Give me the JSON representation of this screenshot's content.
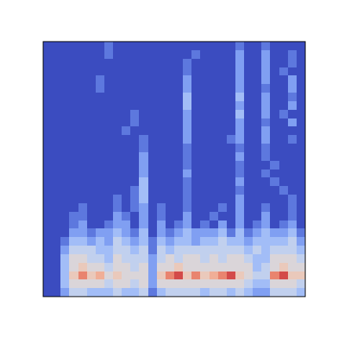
{
  "chart_data": {
    "type": "heatmap",
    "tick_labels": false,
    "zlim": [
      0,
      10
    ],
    "cells": [
      [
        0,
        0,
        0,
        0,
        0,
        0,
        0,
        1,
        0,
        0,
        0,
        0,
        0,
        0,
        0,
        0,
        0,
        0,
        0,
        0,
        0,
        0,
        1,
        0,
        0,
        1,
        0,
        0,
        0,
        0
      ],
      [
        0,
        0,
        0,
        0,
        0,
        0,
        0,
        1,
        0,
        0,
        0,
        0,
        0,
        0,
        0,
        0,
        0,
        1,
        0,
        0,
        0,
        0,
        2,
        0,
        0,
        2,
        0,
        0,
        1,
        0
      ],
      [
        0,
        0,
        0,
        0,
        0,
        0,
        0,
        0,
        0,
        0,
        0,
        0,
        0,
        0,
        0,
        0,
        1,
        0,
        0,
        0,
        0,
        0,
        2,
        0,
        0,
        2,
        0,
        0,
        1,
        0
      ],
      [
        0,
        0,
        0,
        0,
        0,
        0,
        0,
        0,
        0,
        0,
        0,
        0,
        0,
        0,
        0,
        0,
        1,
        0,
        0,
        0,
        0,
        0,
        2,
        0,
        0,
        2,
        0,
        1,
        0,
        0
      ],
      [
        0,
        0,
        0,
        0,
        0,
        0,
        1,
        0,
        0,
        0,
        0,
        0,
        0,
        0,
        0,
        0,
        2,
        0,
        0,
        0,
        0,
        0,
        2,
        0,
        0,
        2,
        0,
        0,
        2,
        0
      ],
      [
        0,
        0,
        0,
        0,
        0,
        0,
        1,
        0,
        0,
        0,
        0,
        0,
        0,
        0,
        0,
        0,
        2,
        0,
        0,
        0,
        0,
        0,
        2,
        0,
        0,
        1,
        0,
        0,
        2,
        0
      ],
      [
        0,
        0,
        0,
        0,
        0,
        0,
        0,
        0,
        0,
        0,
        0,
        0,
        0,
        0,
        0,
        0,
        3,
        0,
        0,
        0,
        0,
        0,
        3,
        0,
        0,
        2,
        0,
        0,
        1,
        0
      ],
      [
        0,
        0,
        0,
        0,
        0,
        0,
        0,
        0,
        0,
        0,
        0,
        0,
        0,
        0,
        0,
        0,
        3,
        0,
        0,
        0,
        0,
        0,
        2,
        0,
        0,
        2,
        0,
        0,
        2,
        0
      ],
      [
        0,
        0,
        0,
        0,
        0,
        0,
        0,
        0,
        0,
        0,
        1,
        0,
        0,
        0,
        0,
        0,
        2,
        0,
        0,
        0,
        0,
        0,
        3,
        0,
        0,
        2,
        0,
        1,
        0,
        0
      ],
      [
        0,
        0,
        0,
        0,
        0,
        0,
        0,
        0,
        0,
        0,
        1,
        0,
        0,
        0,
        0,
        0,
        2,
        0,
        0,
        0,
        0,
        0,
        2,
        0,
        0,
        1,
        0,
        0,
        2,
        0
      ],
      [
        0,
        0,
        0,
        0,
        0,
        0,
        0,
        0,
        0,
        1,
        0,
        0,
        0,
        0,
        0,
        0,
        2,
        0,
        0,
        0,
        0,
        0,
        2,
        0,
        0,
        2,
        0,
        0,
        0,
        0
      ],
      [
        0,
        0,
        0,
        0,
        0,
        0,
        0,
        0,
        0,
        0,
        0,
        1,
        0,
        0,
        0,
        0,
        2,
        0,
        0,
        0,
        0,
        1,
        2,
        0,
        0,
        2,
        0,
        0,
        1,
        0
      ],
      [
        0,
        0,
        0,
        0,
        0,
        0,
        0,
        0,
        0,
        0,
        0,
        1,
        0,
        0,
        0,
        0,
        1,
        0,
        0,
        0,
        0,
        0,
        1,
        0,
        0,
        1,
        0,
        0,
        0,
        0
      ],
      [
        0,
        0,
        0,
        0,
        0,
        0,
        0,
        0,
        0,
        0,
        0,
        2,
        0,
        0,
        0,
        0,
        1,
        0,
        0,
        0,
        0,
        0,
        2,
        0,
        0,
        1,
        0,
        0,
        0,
        0
      ],
      [
        0,
        0,
        0,
        0,
        0,
        0,
        0,
        0,
        0,
        0,
        0,
        2,
        0,
        0,
        0,
        0,
        1,
        0,
        0,
        0,
        0,
        0,
        1,
        0,
        0,
        0,
        1,
        0,
        0,
        0
      ],
      [
        0,
        0,
        0,
        0,
        0,
        0,
        0,
        0,
        0,
        0,
        0,
        2,
        0,
        0,
        0,
        0,
        2,
        0,
        0,
        0,
        0,
        0,
        1,
        0,
        0,
        1,
        0,
        0,
        0,
        0
      ],
      [
        0,
        0,
        0,
        0,
        0,
        0,
        0,
        0,
        0,
        0,
        0,
        3,
        0,
        0,
        0,
        0,
        1,
        0,
        0,
        0,
        0,
        0,
        2,
        0,
        0,
        0,
        1,
        0,
        0,
        0
      ],
      [
        0,
        0,
        0,
        0,
        0,
        0,
        0,
        0,
        0,
        0,
        1,
        3,
        0,
        0,
        0,
        0,
        1,
        0,
        0,
        0,
        0,
        0,
        1,
        0,
        0,
        0,
        0,
        1,
        0,
        0
      ],
      [
        0,
        0,
        0,
        0,
        0,
        0,
        0,
        0,
        1,
        0,
        1,
        3,
        0,
        0,
        0,
        0,
        1,
        0,
        0,
        0,
        0,
        0,
        2,
        0,
        0,
        0,
        0,
        0,
        1,
        0
      ],
      [
        0,
        0,
        0,
        0,
        1,
        0,
        0,
        0,
        1,
        0,
        1,
        2,
        0,
        1,
        0,
        0,
        1,
        0,
        0,
        0,
        1,
        0,
        2,
        0,
        0,
        1,
        0,
        0,
        1,
        0
      ],
      [
        0,
        0,
        0,
        1,
        1,
        0,
        0,
        0,
        2,
        1,
        0,
        2,
        0,
        1,
        0,
        0,
        2,
        0,
        0,
        1,
        0,
        0,
        2,
        0,
        0,
        2,
        0,
        0,
        1,
        0
      ],
      [
        0,
        0,
        0,
        1,
        2,
        0,
        0,
        1,
        2,
        2,
        0,
        2,
        0,
        2,
        0,
        1,
        2,
        0,
        1,
        0,
        2,
        0,
        2,
        0,
        1,
        2,
        0,
        1,
        2,
        0
      ],
      [
        0,
        0,
        0,
        2,
        2,
        1,
        2,
        2,
        3,
        2,
        1,
        3,
        0,
        2,
        1,
        2,
        3,
        2,
        2,
        2,
        3,
        1,
        3,
        1,
        2,
        3,
        2,
        2,
        3,
        1
      ],
      [
        0,
        0,
        1,
        3,
        3,
        2,
        3,
        2,
        4,
        3,
        2,
        3,
        1,
        3,
        2,
        3,
        3,
        2,
        3,
        3,
        4,
        3,
        3,
        2,
        3,
        3,
        3,
        3,
        4,
        2
      ],
      [
        0,
        0,
        2,
        4,
        4,
        4,
        3,
        3,
        4,
        4,
        3,
        4,
        1,
        4,
        3,
        4,
        4,
        4,
        4,
        4,
        4,
        4,
        4,
        3,
        4,
        3,
        4,
        4,
        4,
        3
      ],
      [
        0,
        0,
        3,
        5,
        5,
        4,
        4,
        3,
        5,
        4,
        4,
        4,
        2,
        4,
        5,
        4,
        5,
        5,
        4,
        5,
        4,
        5,
        5,
        4,
        3,
        3,
        5,
        5,
        5,
        4
      ],
      [
        0,
        0,
        3,
        5,
        6,
        5,
        5,
        4,
        5,
        5,
        4,
        5,
        2,
        5,
        5,
        6,
        5,
        5,
        5,
        5,
        5,
        5,
        5,
        5,
        3,
        4,
        5,
        6,
        5,
        5
      ],
      [
        0,
        0,
        3,
        6,
        8,
        6,
        7,
        5,
        6,
        5,
        5,
        5,
        2,
        6,
        8,
        9,
        6,
        8,
        6,
        7,
        8,
        9,
        6,
        5,
        4,
        4,
        8,
        9,
        6,
        6
      ],
      [
        0,
        0,
        3,
        5,
        5,
        5,
        5,
        4,
        5,
        5,
        4,
        5,
        2,
        5,
        5,
        5,
        5,
        5,
        5,
        5,
        5,
        5,
        5,
        4,
        3,
        3,
        5,
        5,
        5,
        4
      ],
      [
        0,
        0,
        2,
        4,
        4,
        3,
        3,
        3,
        4,
        3,
        3,
        4,
        1,
        3,
        4,
        4,
        4,
        4,
        3,
        4,
        4,
        3,
        4,
        3,
        2,
        2,
        4,
        4,
        4,
        3
      ]
    ]
  }
}
